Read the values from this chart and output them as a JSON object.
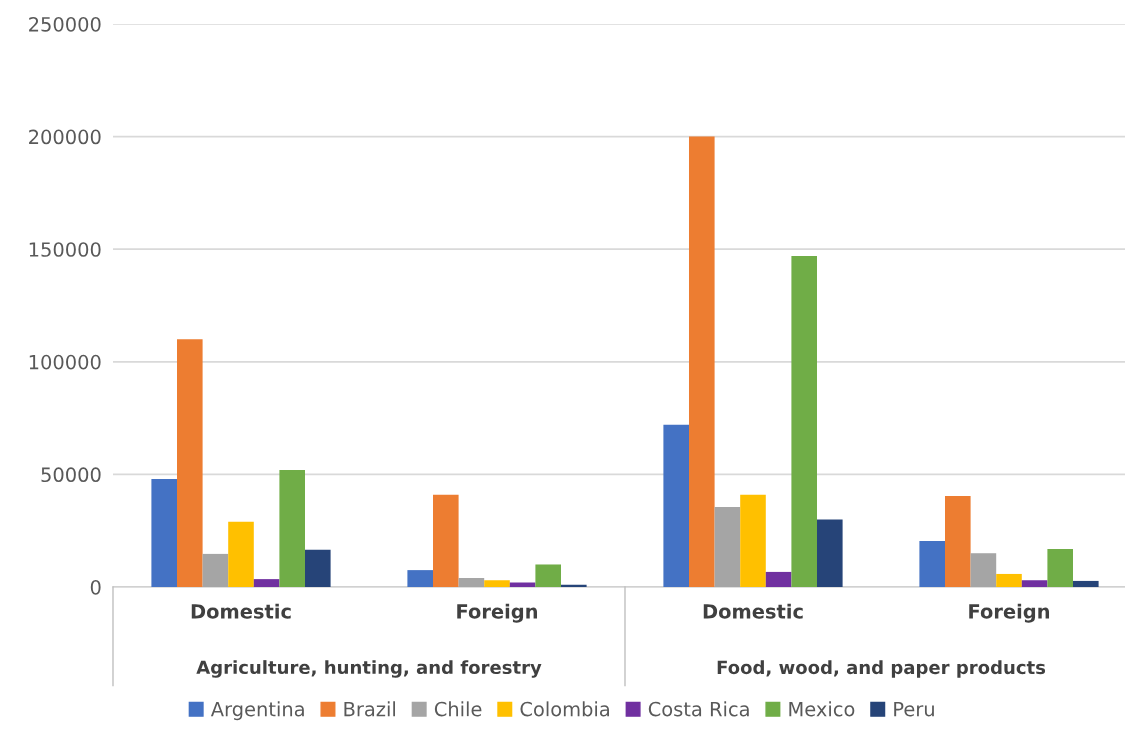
{
  "chart_data": {
    "type": "bar",
    "categories": [
      "Domestic",
      "Foreign",
      "Domestic",
      "Foreign"
    ],
    "annotations": [
      "Agriculture, hunting, and forestry",
      "Food, wood, and paper products"
    ],
    "series": [
      {
        "name": "Argentina",
        "color": "#4472c4",
        "values": [
          48000,
          7500,
          72000,
          20400
        ]
      },
      {
        "name": "Brazil",
        "color": "#ed7d31",
        "values": [
          110000,
          41000,
          200000,
          40400
        ]
      },
      {
        "name": "Chile",
        "color": "#a5a5a5",
        "values": [
          14700,
          4000,
          35500,
          15000
        ]
      },
      {
        "name": "Colombia",
        "color": "#ffc000",
        "values": [
          29000,
          3000,
          41000,
          5800
        ]
      },
      {
        "name": "Costa Rica",
        "color": "#7030a0",
        "values": [
          3500,
          2000,
          6700,
          3000
        ]
      },
      {
        "name": "Mexico",
        "color": "#70ad47",
        "values": [
          52000,
          10000,
          147000,
          16900
        ]
      },
      {
        "name": "Peru",
        "color": "#264478",
        "values": [
          16500,
          1000,
          30000,
          2700
        ]
      }
    ],
    "ylim": [
      0,
      250000
    ],
    "yticks": [
      0,
      50000,
      100000,
      150000,
      200000,
      250000
    ],
    "grid": "y",
    "legend": "bottom"
  }
}
